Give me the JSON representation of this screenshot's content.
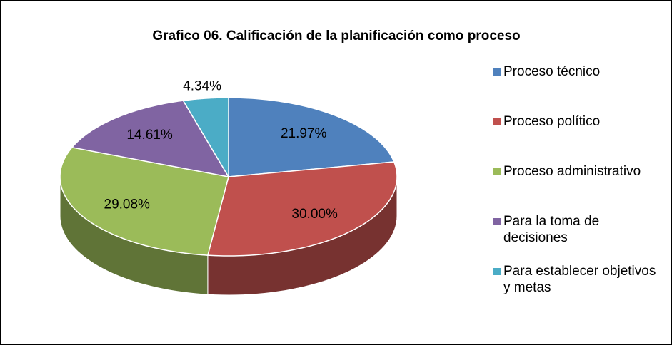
{
  "chart_data": {
    "type": "pie",
    "title": "Grafico 06. Calificación de la planificación como proceso",
    "categories": [
      "Proceso técnico",
      "Proceso político",
      "Proceso administrativo",
      "Para la toma de decisiones",
      "Para establecer objetivos y metas"
    ],
    "values": [
      21.97,
      30.0,
      29.08,
      14.61,
      4.34
    ],
    "value_labels": [
      "21.97%",
      "30.00%",
      "29.08%",
      "14.61%",
      "4.34%"
    ],
    "colors": [
      "#4f81bd",
      "#c0504d",
      "#9bbb59",
      "#8064a2",
      "#4bacc6"
    ],
    "legend": "right"
  }
}
